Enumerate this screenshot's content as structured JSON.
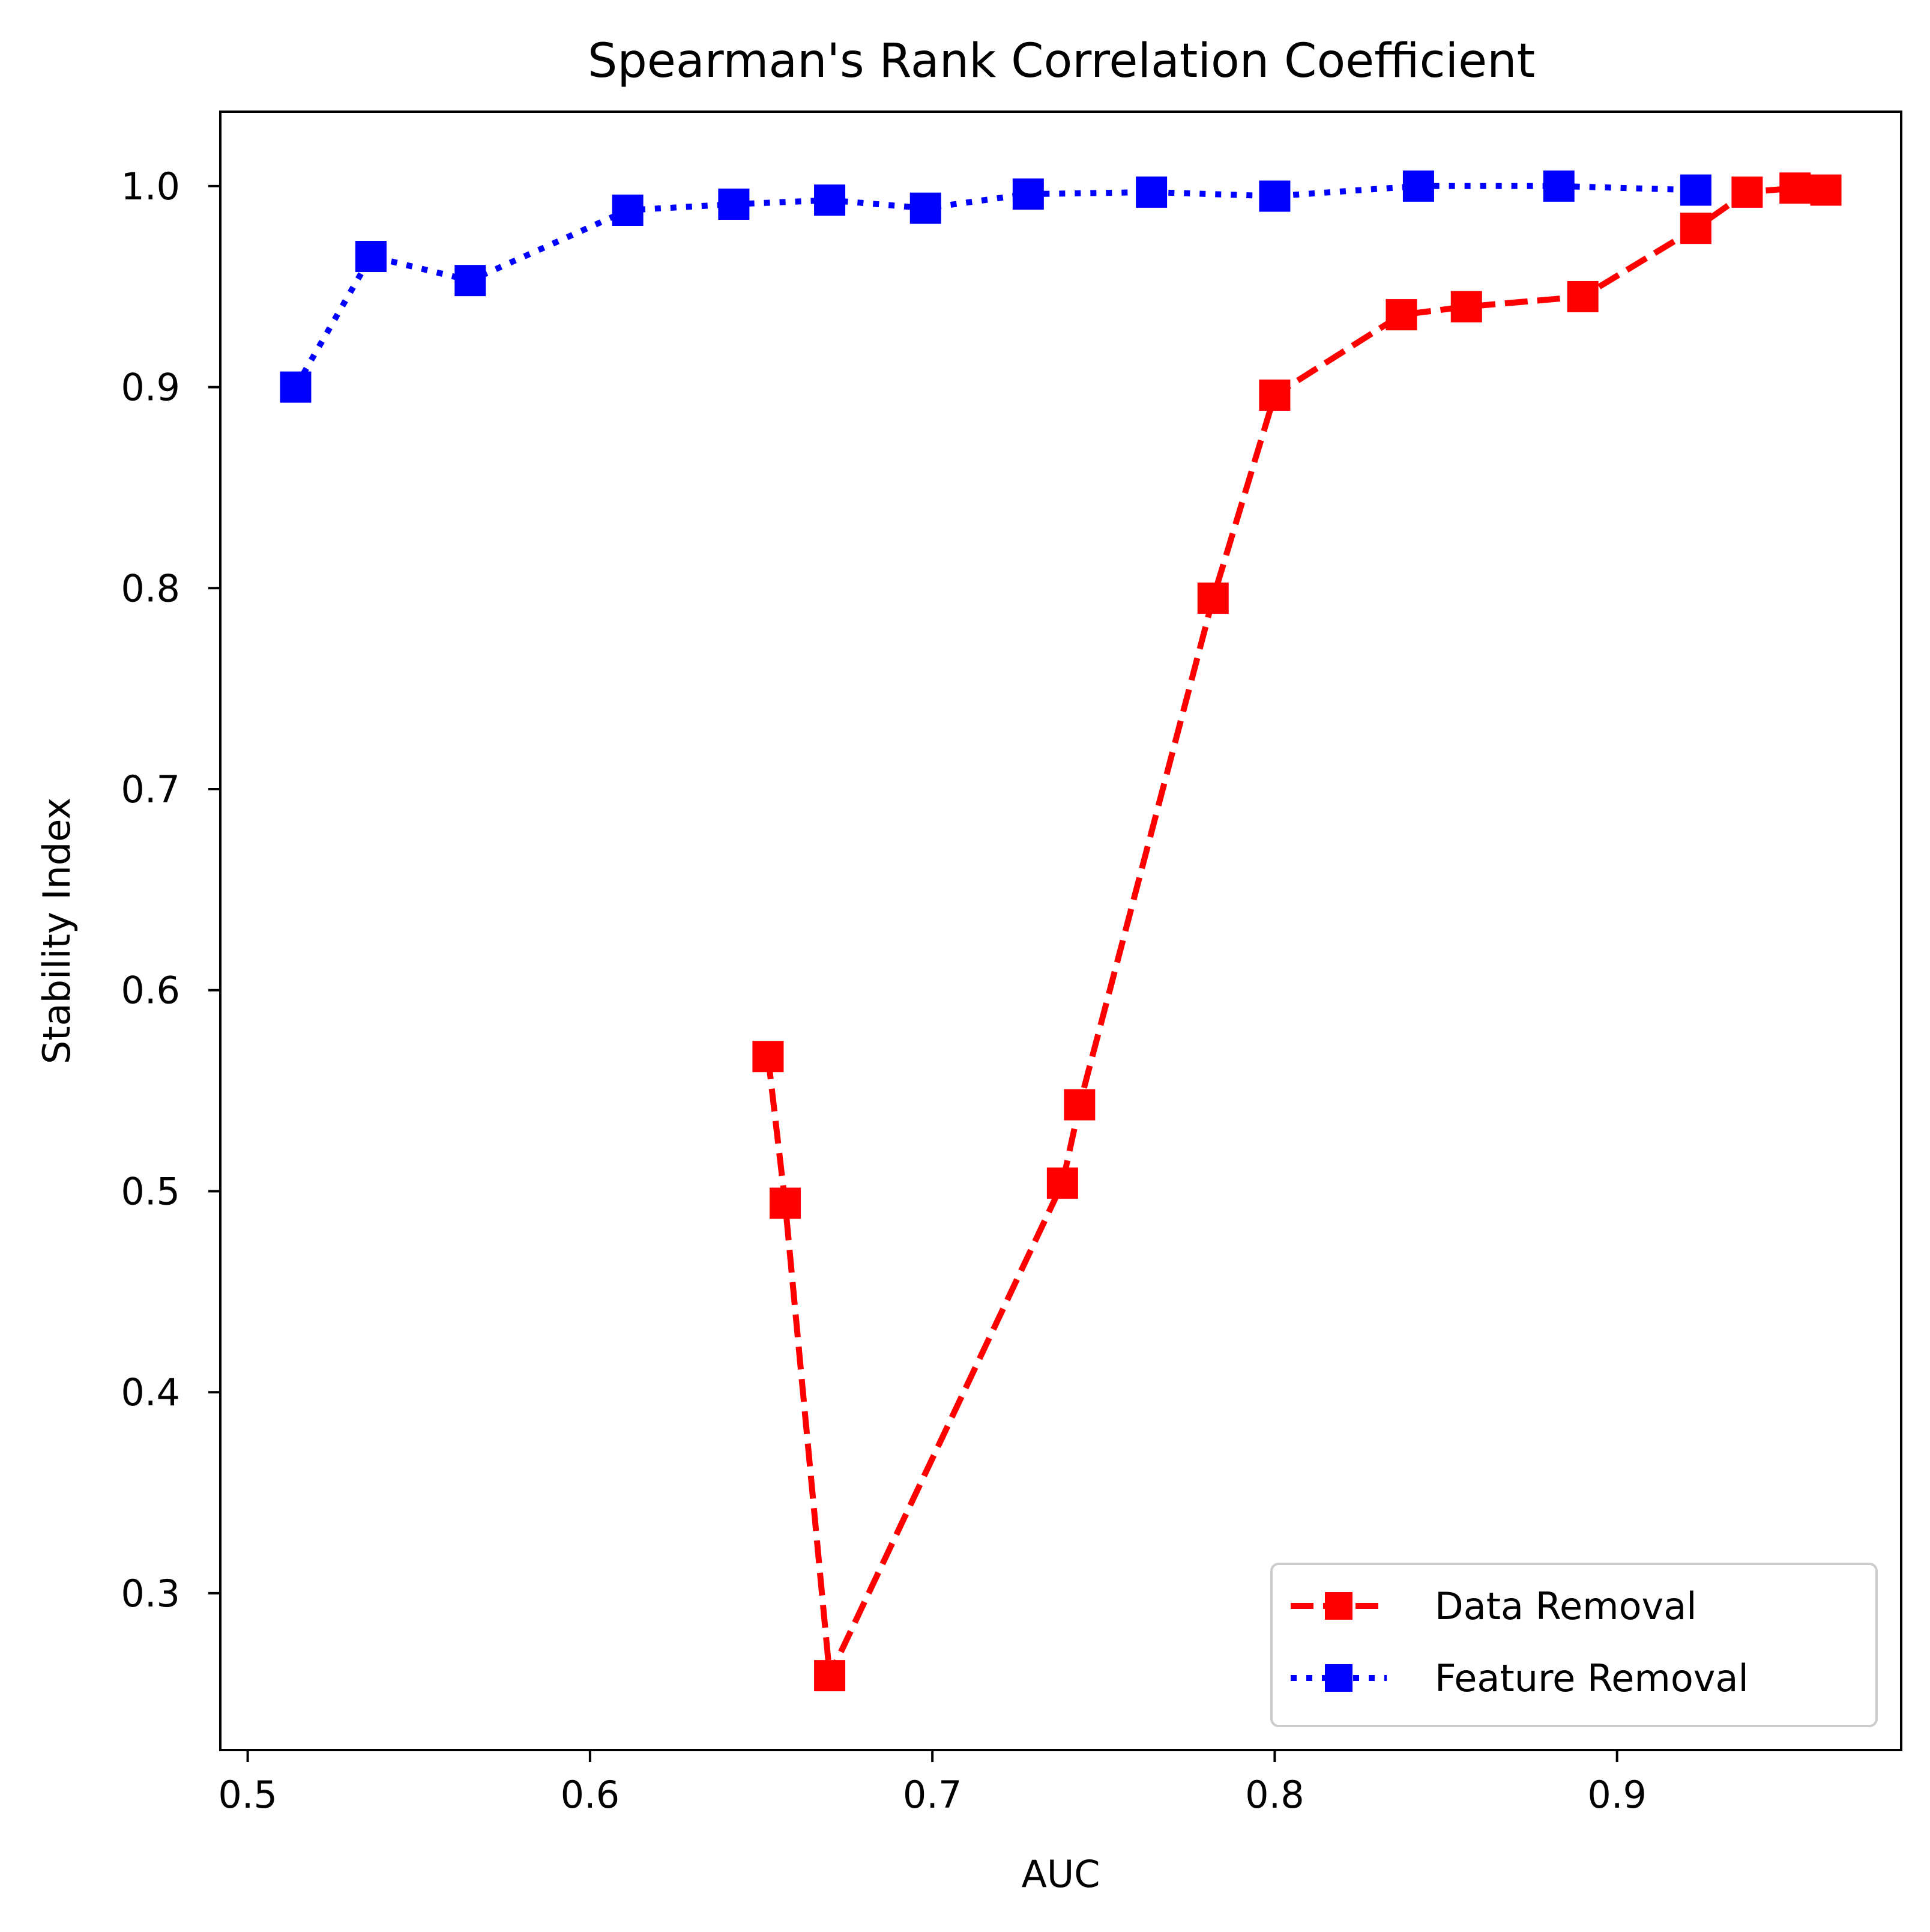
{
  "chart_data": {
    "type": "line",
    "title": "Spearman's Rank Correlation Coefficient",
    "xlabel": "AUC",
    "ylabel": "Stability Index",
    "xlim": [
      0.492,
      0.983
    ],
    "ylim": [
      0.222,
      1.037
    ],
    "xticks": [
      0.5,
      0.6,
      0.7,
      0.8,
      0.9
    ],
    "xtick_labels": [
      "0.5",
      "0.6",
      "0.7",
      "0.8",
      "0.9"
    ],
    "yticks": [
      0.3,
      0.4,
      0.5,
      0.6,
      0.7,
      0.8,
      0.9,
      1.0
    ],
    "ytick_labels": [
      "0.3",
      "0.4",
      "0.5",
      "0.6",
      "0.7",
      "0.8",
      "0.9",
      "1.0"
    ],
    "grid": false,
    "legend_position": "lower-right",
    "series": [
      {
        "name": "Data Removal",
        "color": "#ff0000",
        "line_style": "dashed",
        "marker": "square",
        "x": [
          0.652,
          0.657,
          0.67,
          0.738,
          0.743,
          0.782,
          0.8,
          0.837,
          0.856,
          0.89,
          0.923,
          0.938,
          0.952,
          0.961
        ],
        "y": [
          0.567,
          0.494,
          0.259,
          0.504,
          0.543,
          0.795,
          0.896,
          0.936,
          0.94,
          0.945,
          0.979,
          0.997,
          0.999,
          0.998
        ]
      },
      {
        "name": "Feature Removal",
        "color": "#0000ff",
        "line_style": "dotted",
        "marker": "square",
        "x": [
          0.514,
          0.536,
          0.565,
          0.611,
          0.642,
          0.67,
          0.698,
          0.728,
          0.764,
          0.8,
          0.842,
          0.883,
          0.923
        ],
        "y": [
          0.9,
          0.965,
          0.953,
          0.988,
          0.991,
          0.993,
          0.989,
          0.996,
          0.997,
          0.995,
          1.0,
          1.0,
          0.998
        ]
      }
    ]
  }
}
